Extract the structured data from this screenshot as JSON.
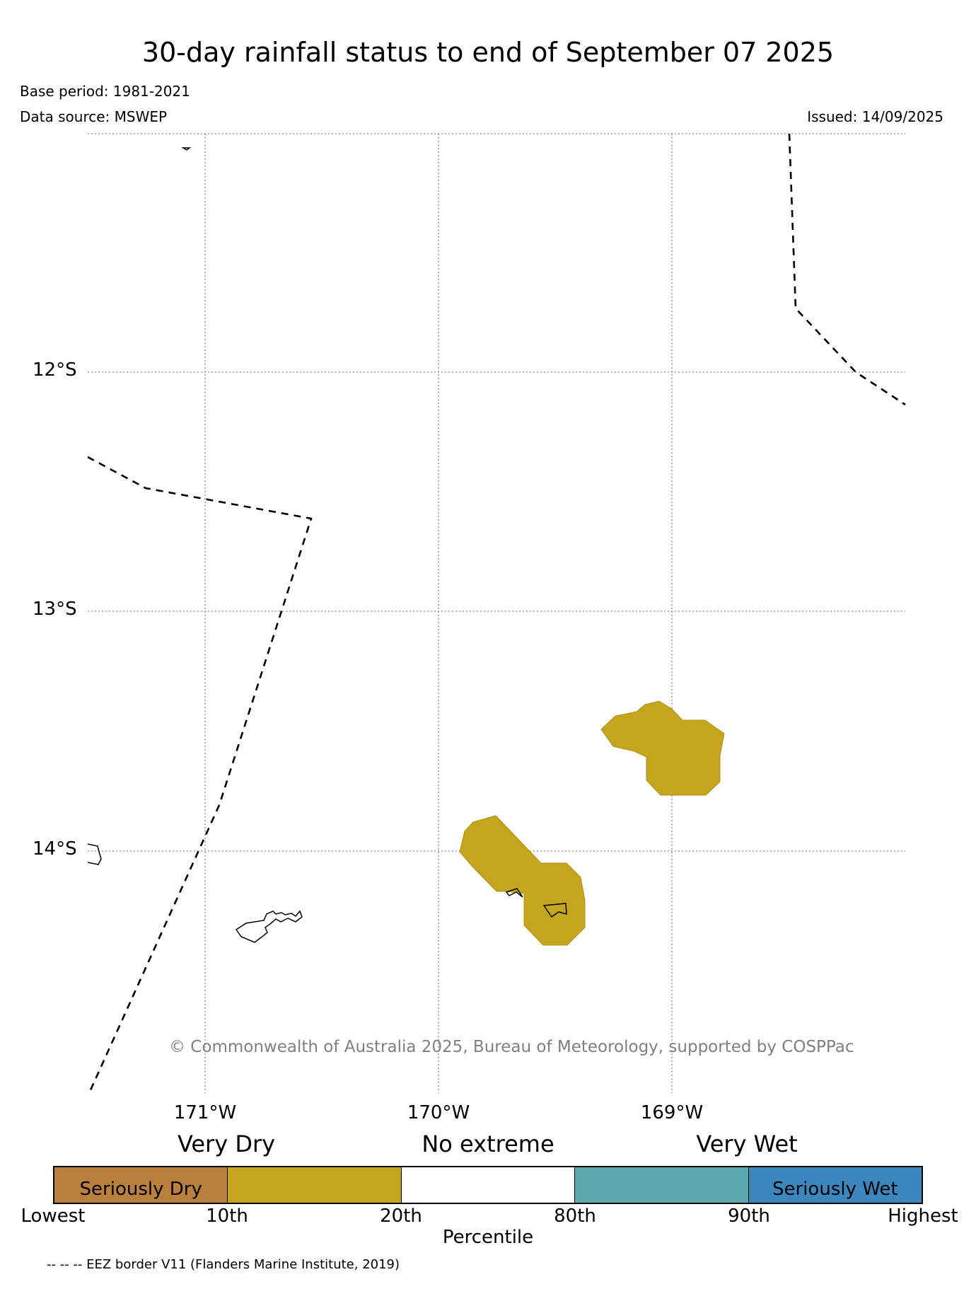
{
  "title": "30-day rainfall status to end of September 07 2025",
  "meta": {
    "base_period": "Base period: 1981-2021",
    "data_source": "Data source: MSWEP",
    "issued": "Issued: 14/09/2025"
  },
  "map": {
    "lat_labels": [
      "12°S",
      "13°S",
      "14°S"
    ],
    "lon_labels": [
      "171°W",
      "170°W",
      "169°W"
    ],
    "copyright": "© Commonwealth of Australia 2025, Bureau of Meteorology, supported by COSPPac",
    "colors": {
      "very_dry_fill": "#c4a51d",
      "eez_border": "#000000",
      "gridline": "#888888",
      "copyright_text": "#808080"
    }
  },
  "legend": {
    "categories": [
      "Very Dry",
      "No extreme",
      "Very Wet"
    ],
    "segments": [
      {
        "label": "Seriously Dry",
        "color": "#b8803c"
      },
      {
        "label": "",
        "color": "#c4a51d"
      },
      {
        "label": "",
        "color": "#ffffff"
      },
      {
        "label": "",
        "color": "#5ba8ad"
      },
      {
        "label": "Seriously Wet",
        "color": "#3a86bd"
      }
    ],
    "ticks": [
      "Lowest",
      "10th",
      "20th",
      "80th",
      "90th",
      "Highest"
    ],
    "axis_label": "Percentile"
  },
  "footnote": "-- -- -- EEZ border V11 (Flanders Marine Institute, 2019)"
}
